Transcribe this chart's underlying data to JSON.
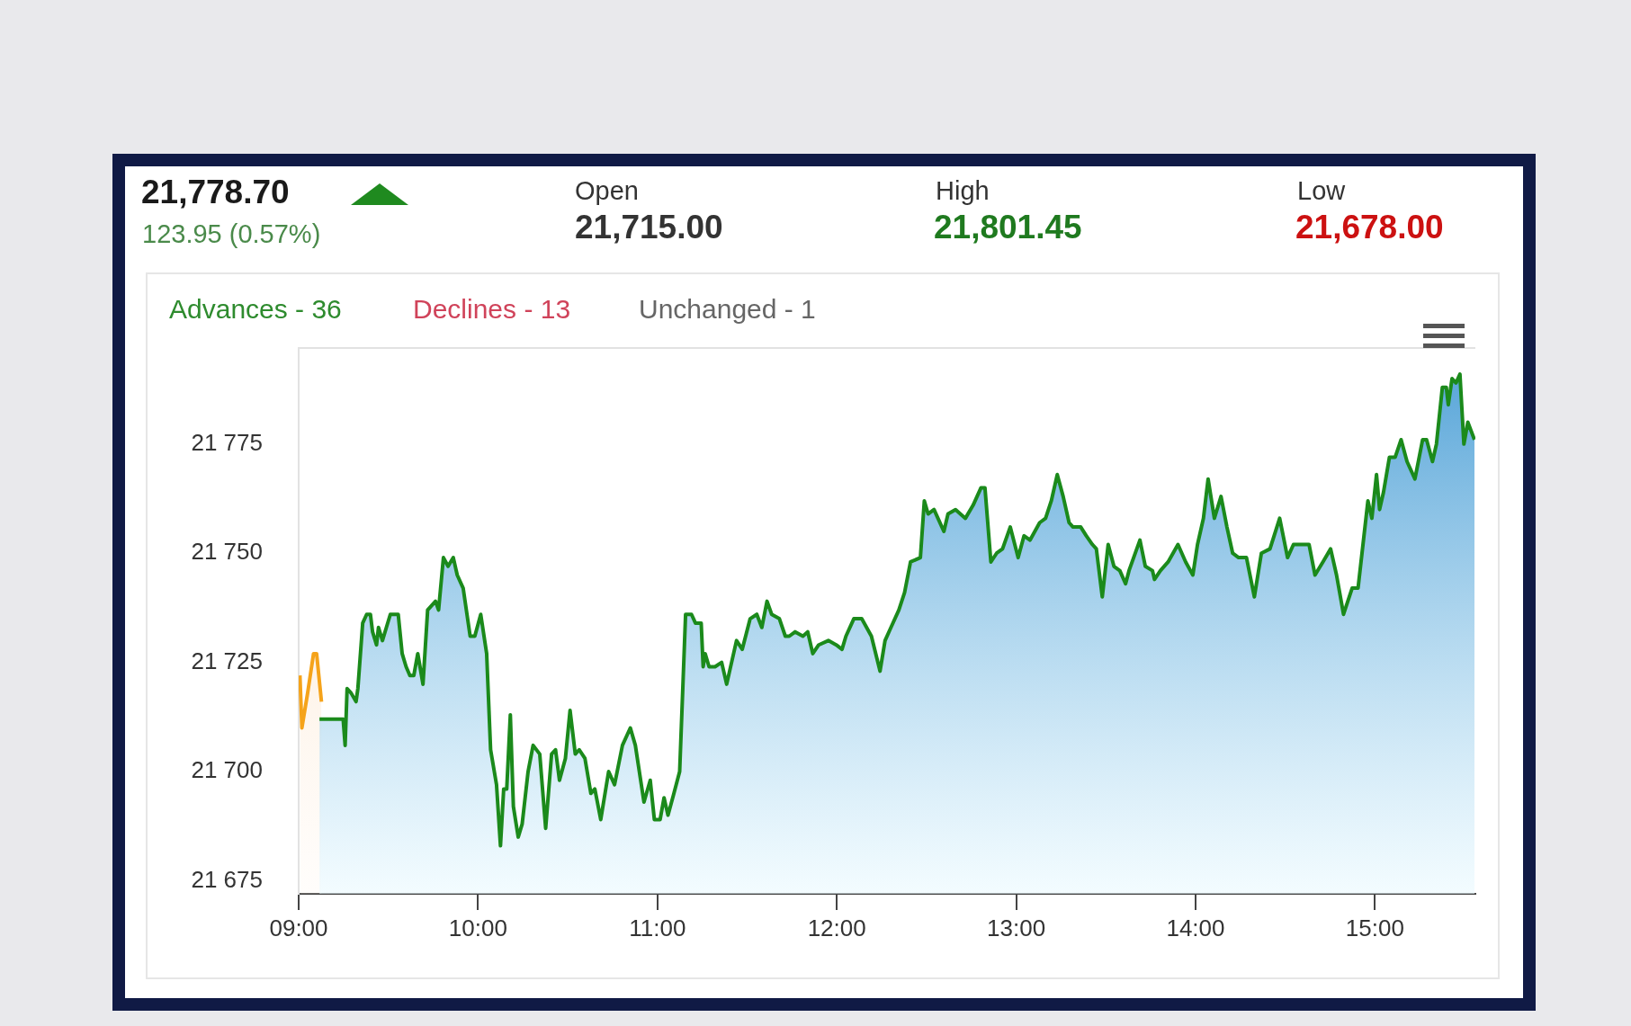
{
  "chart_data": {
    "type": "area",
    "title": "21,778.70",
    "subtitle": "123.95 (0.57%)",
    "annotations": [
      "Open",
      "21,715.00",
      "High",
      "21,801.45",
      "Low",
      "21,678.00",
      "Advances - 36",
      "Declines - 13",
      "Unchanged - 1"
    ],
    "xlim": [
      9,
      15.56
    ],
    "xticks": [
      {
        "value": 9,
        "label": "09:00"
      },
      {
        "value": 10,
        "label": "10:00"
      },
      {
        "value": 11,
        "label": "11:00"
      },
      {
        "value": 12,
        "label": "12:00"
      },
      {
        "value": 13,
        "label": "13:00"
      },
      {
        "value": 14,
        "label": "14:00"
      },
      {
        "value": 15,
        "label": "15:00"
      }
    ],
    "ylim": [
      21672,
      21797
    ],
    "yticks": [
      {
        "value": 21675,
        "label": "21 675"
      },
      {
        "value": 21700,
        "label": "21 700"
      },
      {
        "value": 21725,
        "label": "21 725"
      },
      {
        "value": 21750,
        "label": "21 750"
      },
      {
        "value": 21775,
        "label": "21 775"
      }
    ],
    "marker": "none",
    "line_style": "solid",
    "series": [
      {
        "color": "#f5a31a",
        "x": [
          9.007,
          9.018,
          9.05,
          9.061,
          9.083,
          9.1,
          9.127
        ],
        "values": [
          21722,
          21710,
          21718,
          21721,
          21727,
          21727,
          21716
        ]
      },
      {
        "color": "#1b8a1b",
        "x": [
          9.116,
          9.248,
          9.259,
          9.27,
          9.292,
          9.32,
          9.33,
          9.357,
          9.379,
          9.4,
          9.412,
          9.434,
          9.445,
          9.467,
          9.489,
          9.511,
          9.555,
          9.577,
          9.599,
          9.62,
          9.642,
          9.664,
          9.693,
          9.719,
          9.763,
          9.78,
          9.807,
          9.833,
          9.862,
          9.884,
          9.917,
          9.956,
          9.982,
          10.015,
          10.048,
          10.07,
          10.103,
          10.125,
          10.143,
          10.16,
          10.18,
          10.197,
          10.224,
          10.246,
          10.279,
          10.307,
          10.344,
          10.377,
          10.41,
          10.432,
          10.454,
          10.487,
          10.513,
          10.542,
          10.564,
          10.596,
          10.629,
          10.651,
          10.684,
          10.728,
          10.761,
          10.805,
          10.849,
          10.877,
          10.925,
          10.96,
          10.983,
          11.015,
          11.037,
          11.059,
          11.092,
          11.124,
          11.157,
          11.19,
          11.212,
          11.244,
          11.255,
          11.266,
          11.288,
          11.321,
          11.358,
          11.386,
          11.441,
          11.473,
          11.517,
          11.554,
          11.582,
          11.611,
          11.637,
          11.68,
          11.713,
          11.735,
          11.768,
          11.811,
          11.838,
          11.866,
          11.899,
          11.953,
          11.997,
          12.029,
          12.051,
          12.095,
          12.139,
          12.193,
          12.241,
          12.269,
          12.302,
          12.346,
          12.378,
          12.411,
          12.466,
          12.488,
          12.509,
          12.542,
          12.564,
          12.597,
          12.62,
          12.662,
          12.717,
          12.76,
          12.804,
          12.826,
          12.859,
          12.891,
          12.924,
          12.967,
          13.011,
          13.044,
          13.077,
          13.131,
          13.164,
          13.196,
          13.229,
          13.262,
          13.295,
          13.317,
          13.36,
          13.391,
          13.425,
          13.447,
          13.48,
          13.513,
          13.545,
          13.578,
          13.61,
          13.629,
          13.69,
          13.72,
          13.76,
          13.771,
          13.804,
          13.847,
          13.902,
          13.945,
          13.985,
          14.011,
          14.044,
          14.07,
          14.105,
          14.142,
          14.175,
          14.207,
          14.24,
          14.284,
          14.328,
          14.367,
          14.415,
          14.469,
          14.513,
          14.546,
          14.6,
          14.633,
          14.666,
          14.71,
          14.753,
          14.786,
          14.825,
          14.873,
          14.906,
          14.961,
          14.983,
          15.009,
          15.026,
          15.048,
          15.081,
          15.113,
          15.146,
          15.179,
          15.223,
          15.266,
          15.288,
          15.321,
          15.343,
          15.376,
          15.398,
          15.409,
          15.43,
          15.452,
          15.474,
          15.496,
          15.518,
          15.555
        ],
        "values": [
          21712,
          21712,
          21706,
          21719,
          21718,
          21716,
          21719,
          21734,
          21736,
          21736,
          21732,
          21729,
          21733,
          21730,
          21733,
          21736,
          21736,
          21727,
          21724,
          21722,
          21722,
          21727,
          21720,
          21737,
          21739,
          21737,
          21749,
          21747,
          21749,
          21745,
          21742,
          21731,
          21731,
          21736,
          21727,
          21705,
          21697,
          21683,
          21696,
          21696,
          21713,
          21692,
          21685,
          21688,
          21700,
          21706,
          21704,
          21687,
          21704,
          21705,
          21698,
          21703,
          21714,
          21704,
          21705,
          21703,
          21695,
          21696,
          21689,
          21700,
          21697,
          21706,
          21710,
          21706,
          21693,
          21698,
          21689,
          21689,
          21694,
          21690,
          21695,
          21700,
          21736,
          21736,
          21734,
          21734,
          21724,
          21727,
          21724,
          21724,
          21725,
          21720,
          21730,
          21728,
          21735,
          21736,
          21733,
          21739,
          21736,
          21735,
          21731,
          21731,
          21732,
          21731,
          21732,
          21727,
          21729,
          21730,
          21729,
          21728,
          21731,
          21735,
          21735,
          21731,
          21723,
          21730,
          21733,
          21737,
          21741,
          21748,
          21749,
          21762,
          21759,
          21760,
          21758,
          21755,
          21759,
          21760,
          21758,
          21761,
          21765,
          21765,
          21748,
          21750,
          21751,
          21756,
          21749,
          21754,
          21753,
          21757,
          21758,
          21762,
          21768,
          21763,
          21757,
          21756,
          21756,
          21754,
          21752,
          21751,
          21740,
          21752,
          21747,
          21746,
          21743,
          21746,
          21753,
          21747,
          21746,
          21744,
          21746,
          21748,
          21752,
          21748,
          21745,
          21752,
          21758,
          21767,
          21758,
          21763,
          21756,
          21750,
          21749,
          21749,
          21740,
          21750,
          21751,
          21758,
          21749,
          21752,
          21752,
          21752,
          21745,
          21748,
          21751,
          21745,
          21736,
          21742,
          21742,
          21762,
          21758,
          21768,
          21760,
          21764,
          21772,
          21772,
          21776,
          21771,
          21767,
          21776,
          21776,
          21771,
          21775,
          21788,
          21788,
          21784,
          21790,
          21789,
          21791,
          21775,
          21780,
          21776
        ]
      }
    ]
  }
}
